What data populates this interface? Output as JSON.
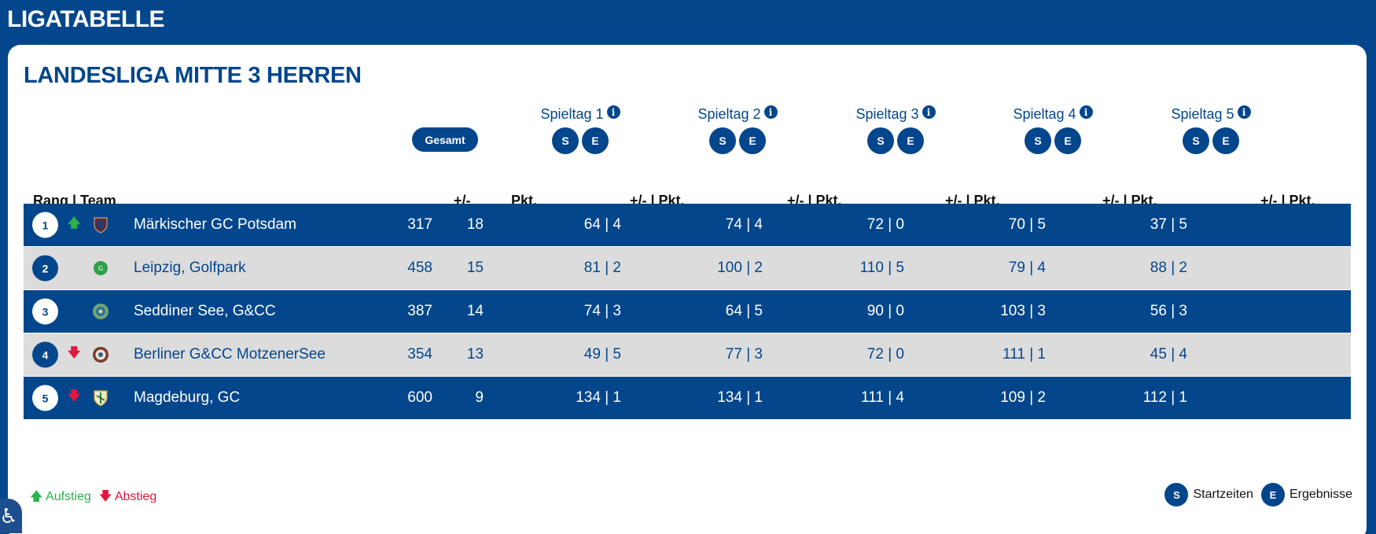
{
  "page": {
    "title": "LIGATABELLE"
  },
  "league": {
    "title": "LANDESLIGA MITTE 3 HERREN"
  },
  "overall_button": "Gesamt",
  "rounds": [
    {
      "label": "Spieltag 1"
    },
    {
      "label": "Spieltag 2"
    },
    {
      "label": "Spieltag 3"
    },
    {
      "label": "Spieltag 4"
    },
    {
      "label": "Spieltag 5"
    }
  ],
  "round_buttons": {
    "start": "S",
    "result": "E"
  },
  "info_icon_glyph": "i",
  "columns": {
    "rank_team": "Rang | Team",
    "diff": "+/-",
    "points": "Pkt.",
    "round": "+/- | Pkt."
  },
  "rows": [
    {
      "rank": "1",
      "trend": "up",
      "trend_glyph": "🡅",
      "logo_icon": "crest-shield-icon",
      "team": "Märkischer GC Potsdam",
      "diff": "317",
      "points": "18",
      "rounds": [
        "64 | 4",
        "74 | 4",
        "72 | 0",
        "70 | 5",
        "37 | 5"
      ]
    },
    {
      "rank": "2",
      "trend": "none",
      "trend_glyph": "",
      "logo_icon": "golfpark-logo-icon",
      "team": "Leipzig, Golfpark",
      "diff": "458",
      "points": "15",
      "rounds": [
        "81 | 2",
        "100 | 2",
        "110 | 5",
        "79 | 4",
        "88 | 2"
      ]
    },
    {
      "rank": "3",
      "trend": "none",
      "trend_glyph": "",
      "logo_icon": "seddiner-see-logo-icon",
      "team": "Seddiner See, G&CC",
      "diff": "387",
      "points": "14",
      "rounds": [
        "74 | 3",
        "64 | 5",
        "90 | 0",
        "103 | 3",
        "56 | 3"
      ]
    },
    {
      "rank": "4",
      "trend": "down",
      "trend_glyph": "🡇",
      "logo_icon": "motzenersee-logo-icon",
      "team": "Berliner G&CC MotzenerSee",
      "diff": "354",
      "points": "13",
      "rounds": [
        "49 | 5",
        "77 | 3",
        "72 | 0",
        "111 | 1",
        "45 | 4"
      ]
    },
    {
      "rank": "5",
      "trend": "down",
      "trend_glyph": "🡇",
      "logo_icon": "magdeburg-shield-icon",
      "team": "Magdeburg, GC",
      "diff": "600",
      "points": "9",
      "rounds": [
        "134 | 1",
        "134 | 1",
        "111 | 4",
        "109 | 2",
        "112 | 1"
      ]
    }
  ],
  "legend": {
    "promotion": "Aufstieg",
    "relegation": "Abstieg",
    "start_times": "Startzeiten",
    "results": "Ergebnisse"
  },
  "colors": {
    "primary": "#03468c",
    "row_light": "#dcdcdc",
    "up": "#2bb24c",
    "down": "#e0183c"
  }
}
